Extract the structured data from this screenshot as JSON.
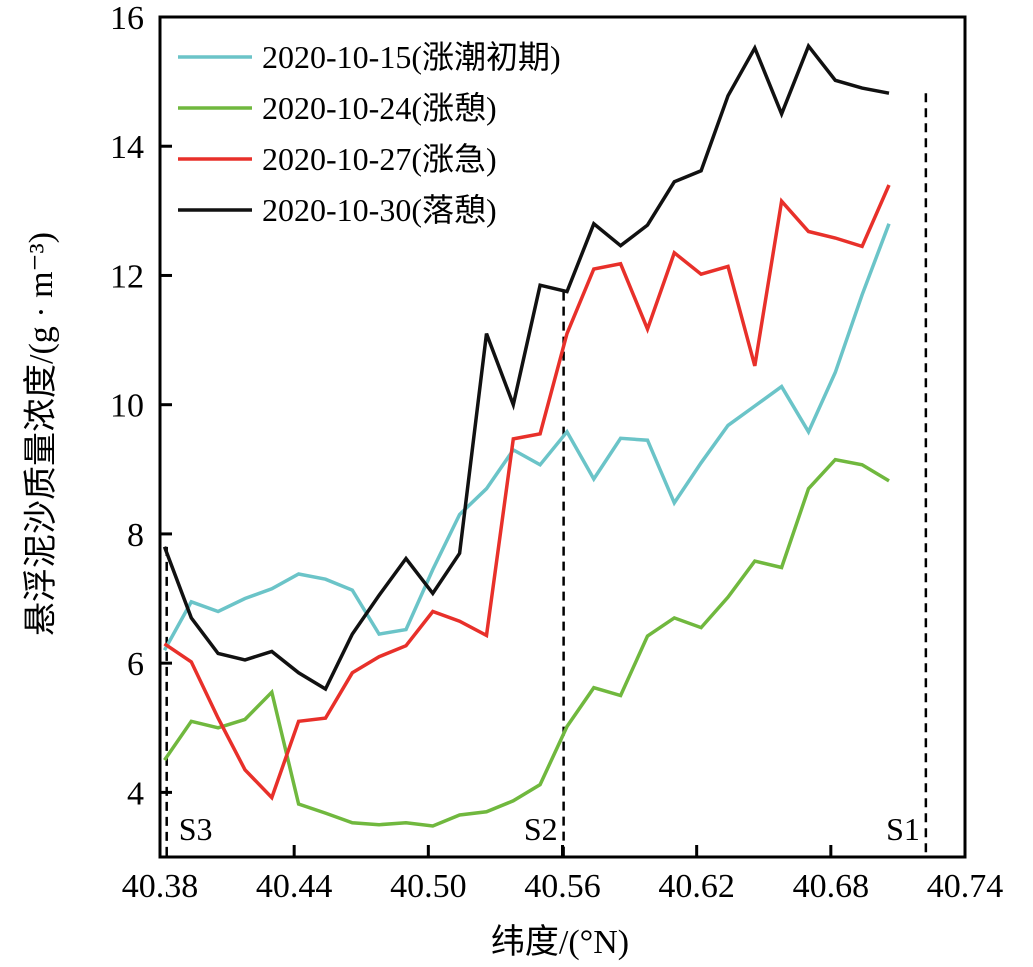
{
  "chart_data": {
    "type": "line",
    "title": "",
    "xlabel": "纬度/(°N)",
    "ylabel": "悬浮泥沙质量浓度/(g · m⁻³)",
    "xlim": [
      40.38,
      40.74
    ],
    "ylim": [
      3,
      16
    ],
    "xticks": [
      "40.38",
      "40.44",
      "40.50",
      "40.56",
      "40.62",
      "40.68",
      "40.74"
    ],
    "yticks": [
      "4",
      "6",
      "8",
      "10",
      "12",
      "14",
      "16"
    ],
    "grid": false,
    "legend_position": "top-left",
    "x": [
      40.382,
      40.394,
      40.406,
      40.418,
      40.43,
      40.442,
      40.454,
      40.466,
      40.478,
      40.49,
      40.502,
      40.514,
      40.526,
      40.538,
      40.55,
      40.562,
      40.574,
      40.586,
      40.598,
      40.61,
      40.622,
      40.634,
      40.646,
      40.658,
      40.67,
      40.682,
      40.694,
      40.706,
      40.718
    ],
    "series": [
      {
        "name": "2020-10-15(涨潮初期)",
        "color": "#6bc4c8",
        "values": [
          6.2,
          6.95,
          6.8,
          7.0,
          7.15,
          7.38,
          7.3,
          7.13,
          6.45,
          6.52,
          7.45,
          8.3,
          8.7,
          9.3,
          9.07,
          9.58,
          8.85,
          9.48,
          9.45,
          8.48,
          9.1,
          9.68,
          9.98,
          10.28,
          9.58,
          10.5,
          11.7,
          12.8,
          null
        ]
      },
      {
        "name": "2020-10-24(涨憩)",
        "color": "#70b83e",
        "values": [
          4.5,
          5.1,
          5.0,
          5.13,
          5.55,
          3.82,
          3.68,
          3.53,
          3.5,
          3.53,
          3.48,
          3.65,
          3.7,
          3.87,
          4.12,
          5.02,
          5.62,
          5.5,
          6.42,
          6.7,
          6.55,
          7.02,
          7.58,
          7.48,
          8.7,
          9.15,
          9.07,
          8.82,
          null
        ]
      },
      {
        "name": "2020-10-27(涨急)",
        "color": "#e8302a",
        "values": [
          6.3,
          6.02,
          5.15,
          4.35,
          3.92,
          5.1,
          5.15,
          5.85,
          6.1,
          6.27,
          6.8,
          6.65,
          6.43,
          9.47,
          9.55,
          11.1,
          12.1,
          12.18,
          11.17,
          12.35,
          12.02,
          12.14,
          10.6,
          13.15,
          12.68,
          12.58,
          12.45,
          13.4,
          null
        ]
      },
      {
        "name": "2020-10-30(落憩)",
        "color": "#111111",
        "values": [
          7.8,
          6.7,
          6.15,
          6.05,
          6.18,
          5.85,
          5.6,
          6.45,
          7.05,
          7.62,
          7.08,
          7.7,
          11.1,
          10.0,
          11.85,
          11.75,
          12.8,
          12.46,
          12.78,
          13.45,
          13.62,
          14.78,
          15.52,
          14.5,
          15.55,
          15.02,
          14.9,
          14.82,
          null
        ]
      }
    ],
    "vlines": [
      {
        "x": 40.383,
        "label": "S3"
      },
      {
        "x": 40.5605,
        "label": "S2"
      },
      {
        "x": 40.7225,
        "label": "S1"
      }
    ]
  }
}
